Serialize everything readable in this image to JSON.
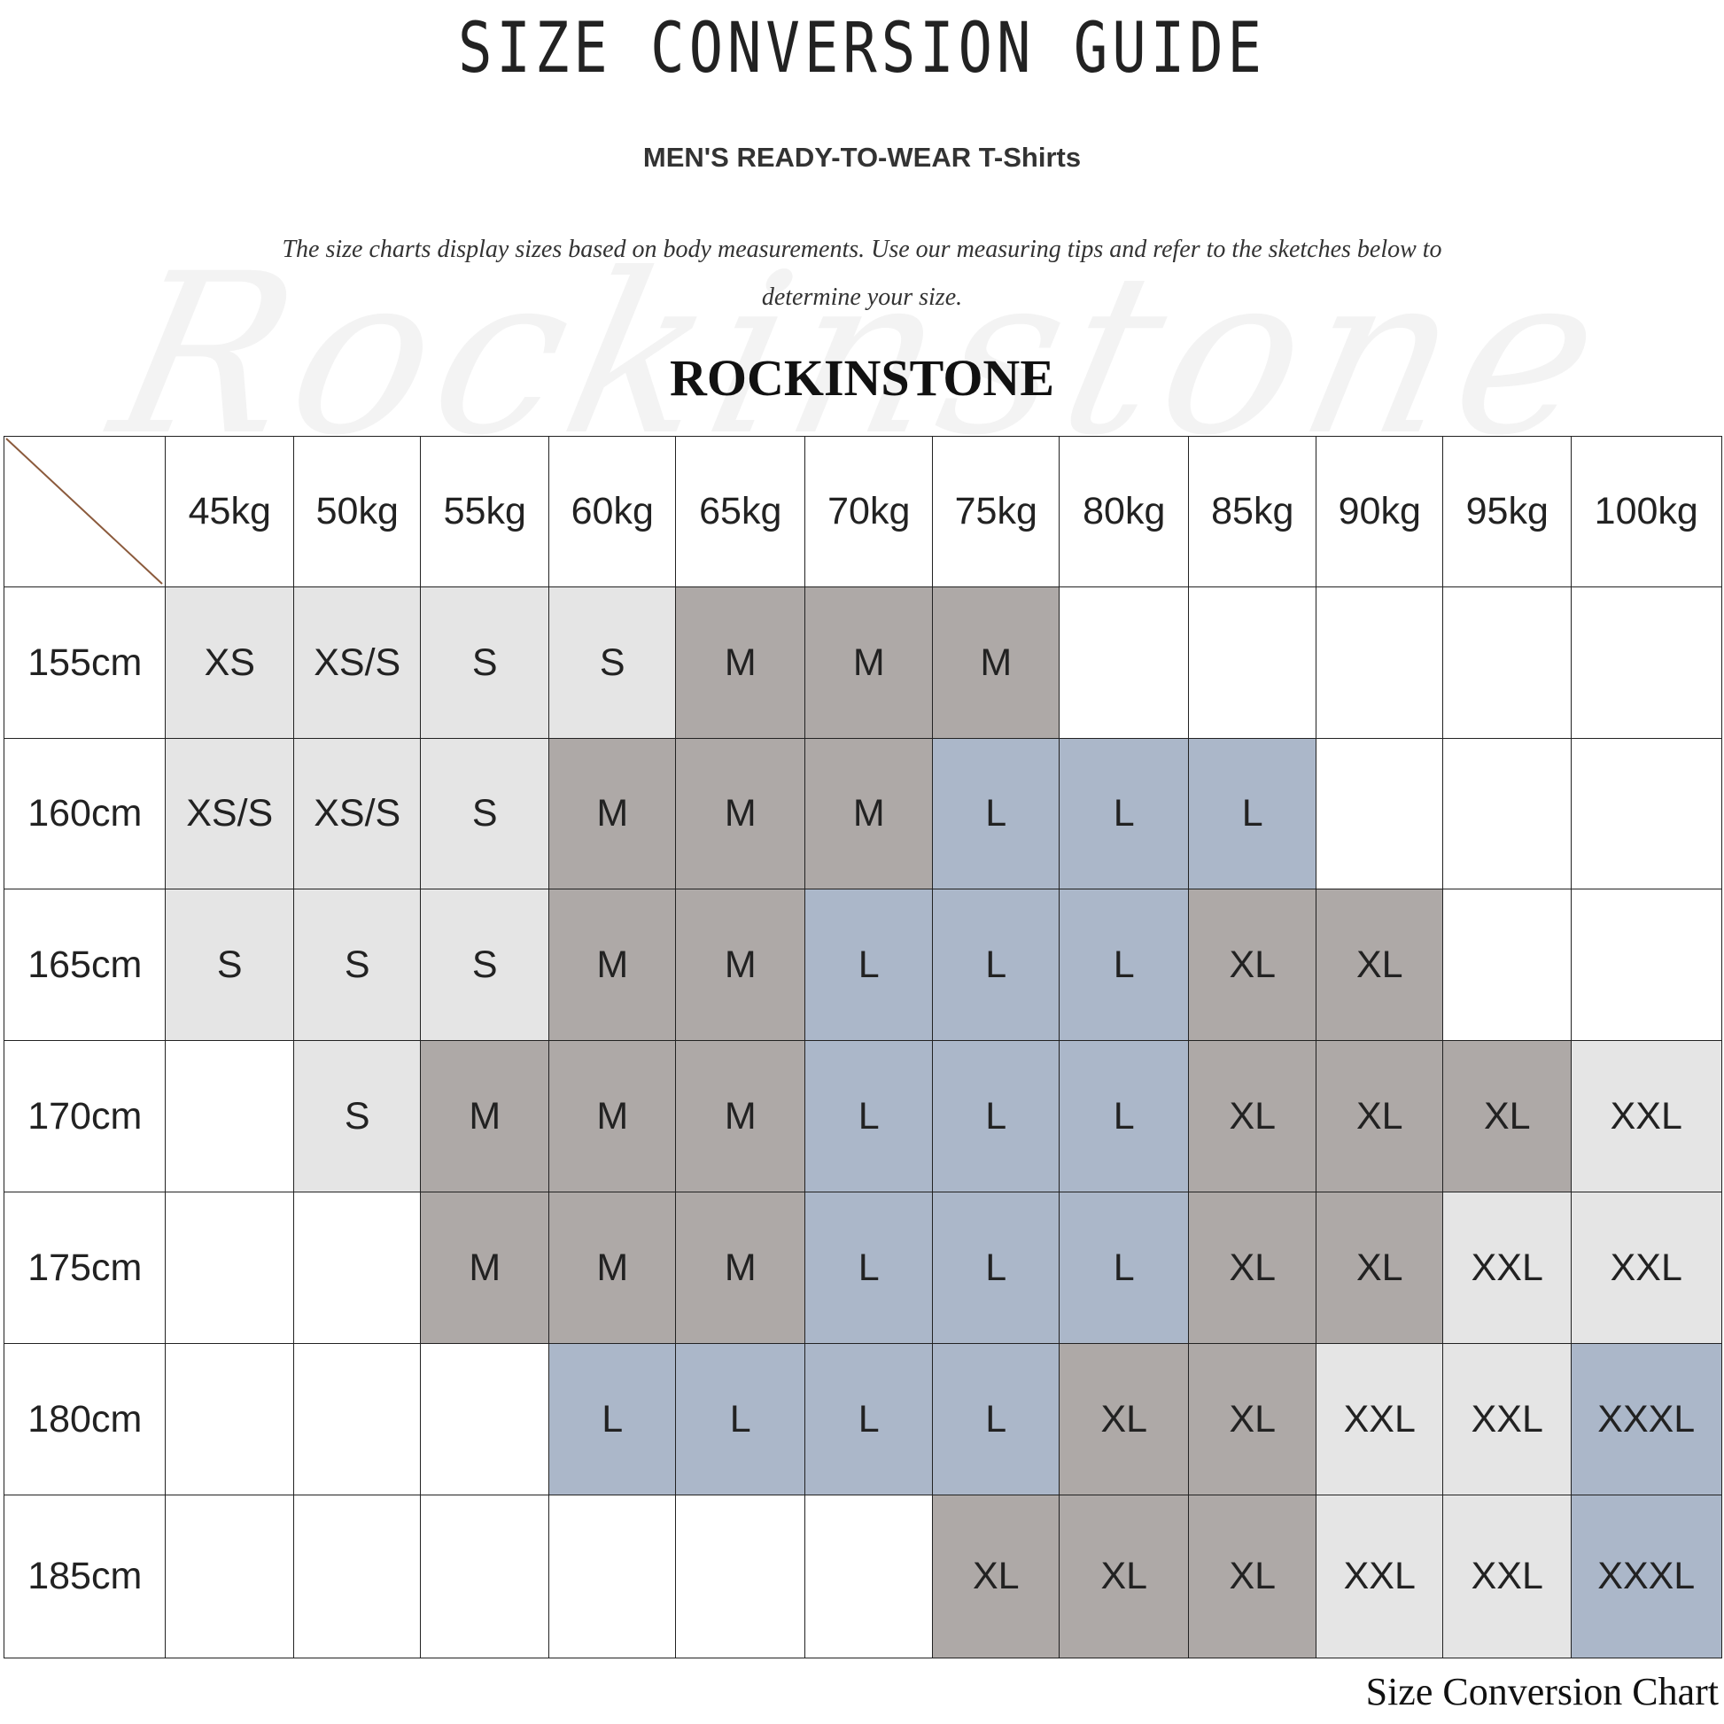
{
  "title": "SIZE CONVERSION GUIDE",
  "subtitle": "MEN'S READY-TO-WEAR T-Shirts",
  "description": "The size charts display sizes based on body measurements. Use our measuring tips and refer to the sketches below to determine your size.",
  "brand": "ROCKINSTONE",
  "watermark": "Rockinstone",
  "footer": "Size Conversion Chart",
  "colors": {
    "light": "#e5e5e5",
    "dark": "#aea9a7",
    "blue": "#abb7c9",
    "empty": "#ffffff",
    "corner_line": "#8b5a3c"
  },
  "size_colors": {
    "XS": "light",
    "XS/S": "light",
    "S": "light",
    "M": "dark",
    "L": "blue",
    "XL": "dark",
    "XXL": "light",
    "XXXL": "blue"
  },
  "chart_data": {
    "type": "table",
    "columns": [
      "45kg",
      "50kg",
      "55kg",
      "60kg",
      "65kg",
      "70kg",
      "75kg",
      "80kg",
      "85kg",
      "90kg",
      "95kg",
      "100kg"
    ],
    "rows": [
      {
        "label": "155cm",
        "values": [
          "XS",
          "XS/S",
          "S",
          "S",
          "M",
          "M",
          "M",
          "",
          "",
          "",
          "",
          ""
        ]
      },
      {
        "label": "160cm",
        "values": [
          "XS/S",
          "XS/S",
          "S",
          "M",
          "M",
          "M",
          "L",
          "L",
          "L",
          "",
          "",
          ""
        ]
      },
      {
        "label": "165cm",
        "values": [
          "S",
          "S",
          "S",
          "M",
          "M",
          "L",
          "L",
          "L",
          "XL",
          "XL",
          "",
          ""
        ]
      },
      {
        "label": "170cm",
        "values": [
          "",
          "S",
          "M",
          "M",
          "M",
          "L",
          "L",
          "L",
          "XL",
          "XL",
          "XL",
          "XXL"
        ]
      },
      {
        "label": "175cm",
        "values": [
          "",
          "",
          "M",
          "M",
          "M",
          "L",
          "L",
          "L",
          "XL",
          "XL",
          "XXL",
          "XXL"
        ]
      },
      {
        "label": "180cm",
        "values": [
          "",
          "",
          "",
          "L",
          "L",
          "L",
          "L",
          "XL",
          "XL",
          "XXL",
          "XXL",
          "XXXL"
        ]
      },
      {
        "label": "185cm",
        "values": [
          "",
          "",
          "",
          "",
          "",
          "",
          "XL",
          "XL",
          "XL",
          "XXL",
          "XXL",
          "XXXL"
        ]
      }
    ]
  }
}
